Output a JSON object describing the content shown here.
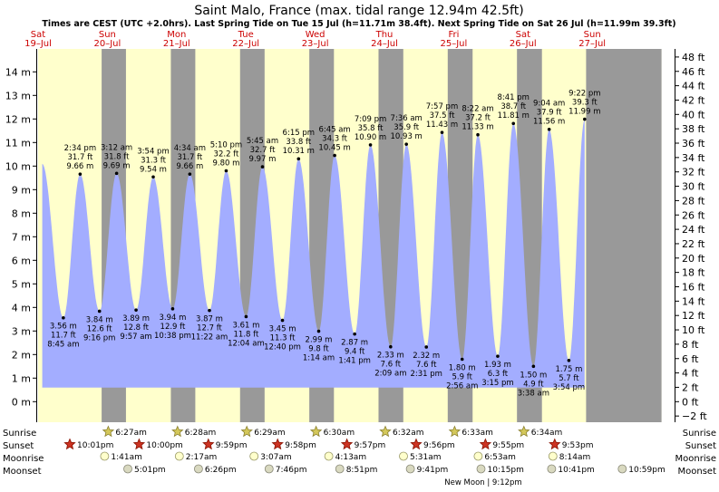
{
  "title": "Saint Malo, France (max. tidal range 12.94m 42.5ft)",
  "subtitle": "Times are CEST (UTC +2.0hrs). Last Spring Tide on Tue 15 Jul (h=11.71m 38.4ft). Next Spring Tide on Sat 26 Jul (h=11.99m 39.3ft)",
  "colors": {
    "day": "#ffffcc",
    "night": "#999999",
    "tide_fill": "#a3adff",
    "day_label": "#cc0000",
    "text": "#000000"
  },
  "days": [
    {
      "dow": "Sat",
      "date": "19–Jul"
    },
    {
      "dow": "Sun",
      "date": "20–Jul"
    },
    {
      "dow": "Mon",
      "date": "21–Jul"
    },
    {
      "dow": "Tue",
      "date": "22–Jul"
    },
    {
      "dow": "Wed",
      "date": "23–Jul"
    },
    {
      "dow": "Thu",
      "date": "24–Jul"
    },
    {
      "dow": "Fri",
      "date": "25–Jul"
    },
    {
      "dow": "Sat",
      "date": "26–Jul"
    },
    {
      "dow": "Sun",
      "date": "27–Jul"
    }
  ],
  "row_labels": {
    "sunrise": "Sunrise",
    "sunset": "Sunset",
    "moonrise": "Moonrise",
    "moonset": "Moonset"
  },
  "sunrise": [
    "6:27am",
    "6:28am",
    "6:29am",
    "6:30am",
    "6:32am",
    "6:33am",
    "6:34am"
  ],
  "sunset": [
    "10:01pm",
    "10:00pm",
    "9:59pm",
    "9:58pm",
    "9:57pm",
    "9:56pm",
    "9:55pm",
    "9:53pm"
  ],
  "moonrise": [
    "1:41am",
    "2:17am",
    "3:07am",
    "4:13am",
    "5:31am",
    "6:53am",
    "8:14am"
  ],
  "moonset": [
    "5:01pm",
    "6:26pm",
    "7:46pm",
    "8:51pm",
    "9:41pm",
    "10:15pm",
    "10:41pm",
    "10:59pm"
  ],
  "moon_phase": "New Moon | 9:12pm",
  "chart_data": {
    "type": "area",
    "y_left_label": "m",
    "y_right_label": "ft",
    "ylim_m": [
      -0.5,
      14.5
    ],
    "y_left_ticks": [
      "14 m",
      "13 m",
      "12 m",
      "11 m",
      "10 m",
      "9 m",
      "8 m",
      "7 m",
      "6 m",
      "5 m",
      "4 m",
      "3 m",
      "2 m",
      "1 m",
      "0 m"
    ],
    "y_right_ticks": [
      "48 ft",
      "46 ft",
      "44 ft",
      "42 ft",
      "40 ft",
      "38 ft",
      "36 ft",
      "34 ft",
      "32 ft",
      "30 ft",
      "28 ft",
      "26 ft",
      "24 ft",
      "22 ft",
      "20 ft",
      "18 ft",
      "16 ft",
      "14 ft",
      "12 ft",
      "10 ft",
      "8 ft",
      "6 ft",
      "4 ft",
      "2 ft",
      "0 ft",
      "−2 ft"
    ],
    "x_range_days": [
      0,
      9
    ],
    "start_level_m": 10.1,
    "sun": [
      {
        "rise": null,
        "set": 22.02
      },
      {
        "rise": 6.45,
        "set": 22.0
      },
      {
        "rise": 6.47,
        "set": 21.98
      },
      {
        "rise": 6.48,
        "set": 21.97
      },
      {
        "rise": 6.5,
        "set": 21.95
      },
      {
        "rise": 6.53,
        "set": 21.93
      },
      {
        "rise": 6.55,
        "set": 21.92
      },
      {
        "rise": 6.57,
        "set": 21.88
      },
      {
        "rise": 6.6,
        "set": null
      }
    ],
    "tides": [
      {
        "type": "high",
        "day": 0,
        "hour": 14.57,
        "m": 9.66,
        "time": "2:34 pm",
        "ft": "31.7 ft",
        "height": "9.66 m"
      },
      {
        "type": "low",
        "day": 0,
        "hour": 8.75,
        "m": 3.56,
        "time": "8:45 am",
        "ft": "11.7 ft",
        "height": "3.56 m"
      },
      {
        "type": "low",
        "day": 0,
        "hour": 21.27,
        "m": 3.84,
        "time": "9:16 pm",
        "ft": "12.6 ft",
        "height": "3.84 m"
      },
      {
        "type": "high",
        "day": 1,
        "hour": 3.2,
        "m": 9.69,
        "time": "3:12 am",
        "ft": "31.8 ft",
        "height": "9.69 m"
      },
      {
        "type": "high",
        "day": 1,
        "hour": 15.9,
        "m": 9.54,
        "time": "3:54 pm",
        "ft": "31.3 ft",
        "height": "9.54 m"
      },
      {
        "type": "low",
        "day": 1,
        "hour": 9.95,
        "m": 3.89,
        "time": "9:57 am",
        "ft": "12.8 ft",
        "height": "3.89 m"
      },
      {
        "type": "low",
        "day": 1,
        "hour": 22.63,
        "m": 3.94,
        "time": "10:38 pm",
        "ft": "12.9 ft",
        "height": "3.94 m"
      },
      {
        "type": "high",
        "day": 2,
        "hour": 4.57,
        "m": 9.66,
        "time": "4:34 am",
        "ft": "31.7 ft",
        "height": "9.66 m"
      },
      {
        "type": "high",
        "day": 2,
        "hour": 17.17,
        "m": 9.8,
        "time": "5:10 pm",
        "ft": "32.2 ft",
        "height": "9.80 m"
      },
      {
        "type": "low",
        "day": 2,
        "hour": 11.37,
        "m": 3.87,
        "time": "11:22 am",
        "ft": "12.7 ft",
        "height": "3.87 m"
      },
      {
        "type": "low",
        "day": 3,
        "hour": 0.07,
        "m": 3.61,
        "time": "12:04 am",
        "ft": "11.8 ft",
        "height": "3.61 m"
      },
      {
        "type": "high",
        "day": 3,
        "hour": 5.75,
        "m": 9.97,
        "time": "5:45 am",
        "ft": "32.7 ft",
        "height": "9.97 m"
      },
      {
        "type": "high",
        "day": 3,
        "hour": 18.25,
        "m": 10.31,
        "time": "6:15 pm",
        "ft": "33.8 ft",
        "height": "10.31 m"
      },
      {
        "type": "low",
        "day": 3,
        "hour": 12.67,
        "m": 3.45,
        "time": "12:40 pm",
        "ft": "11.3 ft",
        "height": "3.45 m"
      },
      {
        "type": "low",
        "day": 4,
        "hour": 1.23,
        "m": 2.99,
        "time": "1:14 am",
        "ft": "9.8 ft",
        "height": "2.99 m"
      },
      {
        "type": "high",
        "day": 4,
        "hour": 6.75,
        "m": 10.45,
        "time": "6:45 am",
        "ft": "34.3 ft",
        "height": "10.45 m"
      },
      {
        "type": "high",
        "day": 4,
        "hour": 19.15,
        "m": 10.9,
        "time": "7:09 pm",
        "ft": "35.8 ft",
        "height": "10.90 m"
      },
      {
        "type": "low",
        "day": 4,
        "hour": 13.68,
        "m": 2.87,
        "time": "1:41 pm",
        "ft": "9.4 ft",
        "height": "2.87 m"
      },
      {
        "type": "low",
        "day": 5,
        "hour": 2.15,
        "m": 2.33,
        "time": "2:09 am",
        "ft": "7.6 ft",
        "height": "2.33 m"
      },
      {
        "type": "high",
        "day": 5,
        "hour": 7.6,
        "m": 10.93,
        "time": "7:36 am",
        "ft": "35.9 ft",
        "height": "10.93 m"
      },
      {
        "type": "high",
        "day": 5,
        "hour": 19.95,
        "m": 11.43,
        "time": "7:57 pm",
        "ft": "37.5 ft",
        "height": "11.43 m"
      },
      {
        "type": "low",
        "day": 5,
        "hour": 14.52,
        "m": 2.32,
        "time": "2:31 pm",
        "ft": "7.6 ft",
        "height": "2.32 m"
      },
      {
        "type": "low",
        "day": 6,
        "hour": 2.93,
        "m": 1.8,
        "time": "2:56 am",
        "ft": "5.9 ft",
        "height": "1.80 m"
      },
      {
        "type": "high",
        "day": 6,
        "hour": 8.37,
        "m": 11.33,
        "time": "8:22 am",
        "ft": "37.2 ft",
        "height": "11.33 m"
      },
      {
        "type": "high",
        "day": 6,
        "hour": 20.68,
        "m": 11.81,
        "time": "8:41 pm",
        "ft": "38.7 ft",
        "height": "11.81 m"
      },
      {
        "type": "low",
        "day": 6,
        "hour": 15.25,
        "m": 1.93,
        "time": "3:15 pm",
        "ft": "6.3 ft",
        "height": "1.93 m"
      },
      {
        "type": "low",
        "day": 7,
        "hour": 3.63,
        "m": 1.5,
        "time": "3:38 am",
        "ft": "4.9 ft",
        "height": "1.50 m"
      },
      {
        "type": "high",
        "day": 7,
        "hour": 9.07,
        "m": 11.56,
        "time": "9:04 am",
        "ft": "37.9 ft",
        "height": "11.56 m"
      },
      {
        "type": "high",
        "day": 7,
        "hour": 21.37,
        "m": 11.99,
        "time": "9:22 pm",
        "ft": "39.3 ft",
        "height": "11.99 m"
      },
      {
        "type": "low",
        "day": 7,
        "hour": 15.9,
        "m": 1.75,
        "time": "3:54 pm",
        "ft": "5.7 ft",
        "height": "1.75 m"
      }
    ]
  }
}
